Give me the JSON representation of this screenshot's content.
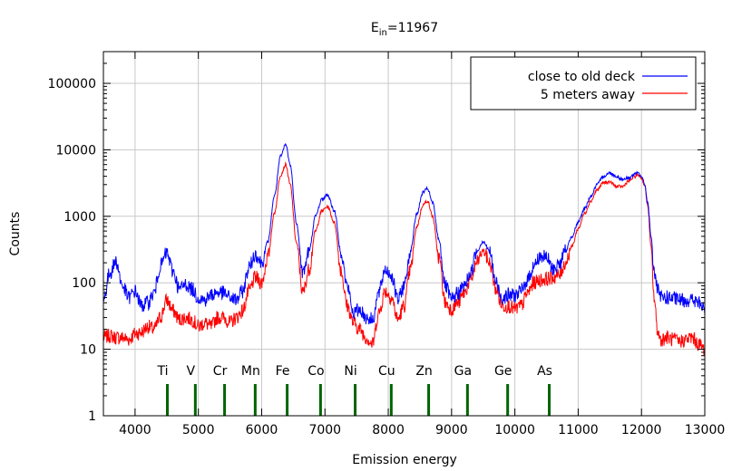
{
  "chart_data": {
    "type": "line",
    "title": {
      "base": "E",
      "sub": "in",
      "rest": "=11967"
    },
    "xlabel": "Emission energy",
    "ylabel": "Counts",
    "xlim": [
      3500,
      13000
    ],
    "ylim": [
      1,
      300000
    ],
    "yscale": "log",
    "grid": true,
    "legend_position": "top-right",
    "x_ticks": [
      4000,
      5000,
      6000,
      7000,
      8000,
      9000,
      10000,
      11000,
      12000,
      13000
    ],
    "y_ticks": [
      {
        "value": 1,
        "label": "1"
      },
      {
        "value": 10,
        "label": "10"
      },
      {
        "value": 100,
        "label": "100"
      },
      {
        "value": 1000,
        "label": "1000"
      },
      {
        "value": 10000,
        "label": "10000"
      },
      {
        "value": 100000,
        "label": "100000"
      }
    ],
    "series": [
      {
        "name": "close to old deck",
        "color": "#0000ff",
        "x": [
          3500,
          3600,
          3700,
          3800,
          3900,
          4000,
          4100,
          4200,
          4300,
          4400,
          4500,
          4600,
          4700,
          4800,
          4900,
          5000,
          5100,
          5200,
          5300,
          5400,
          5500,
          5600,
          5700,
          5800,
          5900,
          6000,
          6100,
          6200,
          6300,
          6380,
          6450,
          6550,
          6650,
          6750,
          6850,
          6950,
          7040,
          7150,
          7250,
          7350,
          7450,
          7550,
          7650,
          7750,
          7850,
          7950,
          8050,
          8150,
          8250,
          8350,
          8450,
          8550,
          8620,
          8700,
          8800,
          8900,
          9000,
          9100,
          9200,
          9300,
          9400,
          9500,
          9600,
          9700,
          9800,
          9900,
          10000,
          10100,
          10200,
          10300,
          10400,
          10500,
          10600,
          10700,
          10800,
          10900,
          11000,
          11100,
          11200,
          11300,
          11400,
          11500,
          11600,
          11700,
          11800,
          11900,
          11950,
          12000,
          12050,
          12100,
          12150,
          12200,
          12250,
          12300,
          12400,
          12500,
          12600,
          12700,
          12800,
          12900,
          13000
        ],
        "y": [
          55,
          140,
          210,
          90,
          60,
          75,
          45,
          50,
          70,
          180,
          280,
          150,
          80,
          95,
          80,
          60,
          55,
          65,
          72,
          70,
          60,
          55,
          75,
          170,
          270,
          200,
          420,
          2000,
          8000,
          12000,
          6000,
          800,
          140,
          300,
          1000,
          1800,
          2100,
          1200,
          300,
          90,
          35,
          40,
          30,
          28,
          70,
          160,
          130,
          55,
          90,
          300,
          1100,
          2300,
          2600,
          1600,
          450,
          90,
          55,
          70,
          90,
          140,
          300,
          420,
          300,
          100,
          60,
          65,
          65,
          75,
          110,
          180,
          250,
          240,
          160,
          190,
          300,
          500,
          800,
          1300,
          2000,
          3000,
          4000,
          4500,
          4000,
          3600,
          3800,
          4300,
          4500,
          4000,
          3000,
          1600,
          500,
          150,
          80,
          60,
          60,
          58,
          55,
          55,
          55,
          50,
          40
        ]
      },
      {
        "name": "5 meters away",
        "color": "#ff0000",
        "x": [
          3500,
          3600,
          3700,
          3800,
          3900,
          4000,
          4100,
          4200,
          4300,
          4400,
          4500,
          4600,
          4700,
          4800,
          4900,
          5000,
          5100,
          5200,
          5300,
          5400,
          5500,
          5600,
          5700,
          5800,
          5900,
          6000,
          6100,
          6200,
          6300,
          6380,
          6450,
          6550,
          6650,
          6750,
          6850,
          6950,
          7040,
          7150,
          7250,
          7350,
          7450,
          7550,
          7650,
          7750,
          7850,
          7950,
          8050,
          8150,
          8250,
          8350,
          8450,
          8550,
          8620,
          8700,
          8800,
          8900,
          9000,
          9100,
          9200,
          9300,
          9400,
          9500,
          9600,
          9700,
          9800,
          9900,
          10000,
          10100,
          10200,
          10300,
          10400,
          10500,
          10600,
          10700,
          10800,
          10900,
          11000,
          11100,
          11200,
          11300,
          11400,
          11500,
          11600,
          11700,
          11800,
          11900,
          11950,
          12000,
          12050,
          12100,
          12150,
          12200,
          12250,
          12300,
          12400,
          12500,
          12600,
          12700,
          12800,
          12900,
          13000
        ],
        "y": [
          15,
          16,
          15,
          15,
          14,
          17,
          18,
          22,
          20,
          30,
          55,
          38,
          28,
          30,
          28,
          22,
          25,
          22,
          30,
          30,
          25,
          30,
          38,
          75,
          120,
          100,
          250,
          1100,
          4200,
          6000,
          3000,
          400,
          70,
          160,
          600,
          1200,
          1400,
          800,
          160,
          45,
          25,
          20,
          15,
          12,
          35,
          75,
          60,
          28,
          45,
          160,
          700,
          1500,
          1700,
          1000,
          240,
          50,
          40,
          50,
          70,
          110,
          200,
          310,
          200,
          80,
          45,
          45,
          40,
          45,
          70,
          100,
          110,
          115,
          120,
          130,
          200,
          350,
          650,
          1100,
          1700,
          2500,
          3200,
          3300,
          2800,
          2800,
          3400,
          4000,
          4200,
          3800,
          2900,
          1400,
          350,
          60,
          20,
          14,
          15,
          14,
          13,
          14,
          15,
          12,
          10
        ]
      }
    ],
    "annotations": [
      {
        "label": "Ti",
        "x": 4510
      },
      {
        "label": "V",
        "x": 4952
      },
      {
        "label": "Cr",
        "x": 5414
      },
      {
        "label": "Mn",
        "x": 5898
      },
      {
        "label": "Fe",
        "x": 6403
      },
      {
        "label": "Co",
        "x": 6930
      },
      {
        "label": "Ni",
        "x": 7477
      },
      {
        "label": "Cu",
        "x": 8047
      },
      {
        "label": "Zn",
        "x": 8638
      },
      {
        "label": "Ga",
        "x": 9251
      },
      {
        "label": "Ge",
        "x": 9886
      },
      {
        "label": "As",
        "x": 10543
      }
    ],
    "marker_color": "#006400",
    "marker_range": [
      1,
      3
    ]
  }
}
